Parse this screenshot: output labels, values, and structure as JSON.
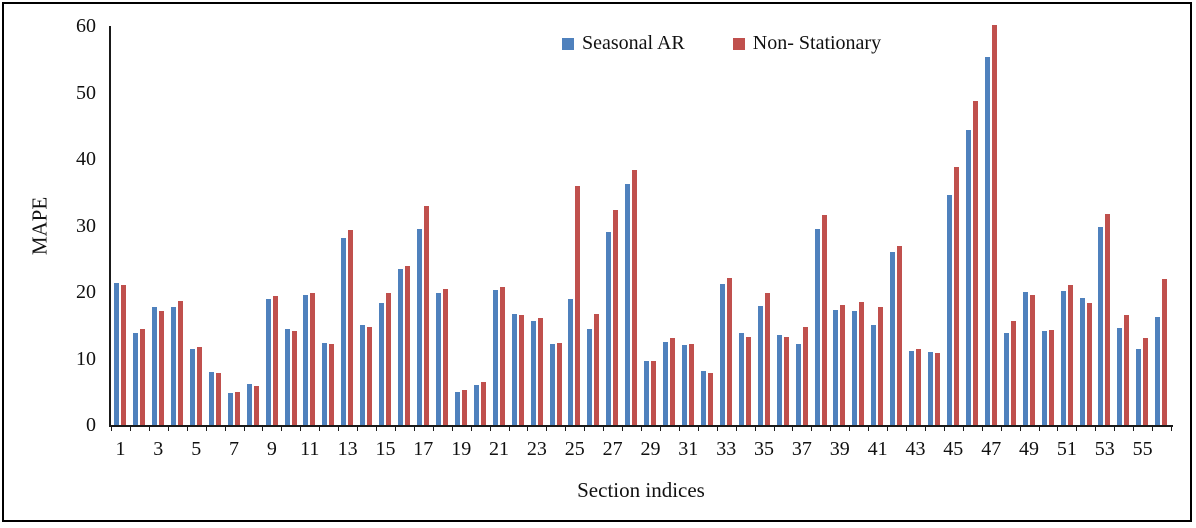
{
  "figure": {
    "ylabel": "MAPE",
    "xlabel": "Section indices"
  },
  "colors": {
    "seasonal_ar": "#4F81BD",
    "non_stationary": "#C0504D",
    "axis": "#1a1a1a"
  },
  "chart_data": {
    "type": "bar",
    "title": "",
    "xlabel": "Section indices",
    "ylabel": "MAPE",
    "ylim": [
      0,
      60
    ],
    "grid": false,
    "legend_position": "top-center",
    "y_ticks": [
      0,
      10,
      20,
      30,
      40,
      50,
      60
    ],
    "x_tick_labels": [
      "1",
      "3",
      "5",
      "7",
      "9",
      "11",
      "13",
      "15",
      "17",
      "19",
      "21",
      "23",
      "25",
      "27",
      "29",
      "31",
      "33",
      "35",
      "37",
      "39",
      "41",
      "43",
      "45",
      "47",
      "49",
      "51",
      "53",
      "55"
    ],
    "x_tick_step": 2,
    "categories": [
      1,
      2,
      3,
      4,
      5,
      6,
      7,
      8,
      9,
      10,
      11,
      12,
      13,
      14,
      15,
      16,
      17,
      18,
      19,
      20,
      21,
      22,
      23,
      24,
      25,
      26,
      27,
      28,
      29,
      30,
      31,
      32,
      33,
      34,
      35,
      36,
      37,
      38,
      39,
      40,
      41,
      42,
      43,
      44,
      45,
      46,
      47,
      48,
      49,
      50,
      51,
      52,
      53,
      54,
      55,
      56
    ],
    "series": [
      {
        "name": "Seasonal AR",
        "color": "#4F81BD",
        "values": [
          21.3,
          13.9,
          17.8,
          17.8,
          11.4,
          8.0,
          4.8,
          6.2,
          19.0,
          14.5,
          19.5,
          12.3,
          28.2,
          15.1,
          18.4,
          23.5,
          29.5,
          19.9,
          4.9,
          6.0,
          20.3,
          16.7,
          15.7,
          12.2,
          18.9,
          14.4,
          29.1,
          36.3,
          9.7,
          12.5,
          12.0,
          8.2,
          21.2,
          13.8,
          17.9,
          13.6,
          12.2,
          29.5,
          17.3,
          17.1,
          15.0,
          26.0,
          11.1,
          11.0,
          34.6,
          44.4,
          55.3,
          13.9,
          20.0,
          14.1,
          20.2,
          19.1,
          29.8,
          14.6,
          11.5,
          16.3
        ]
      },
      {
        "name": "Non- Stationary",
        "color": "#C0504D",
        "values": [
          21.0,
          14.4,
          17.1,
          18.6,
          11.7,
          7.9,
          4.9,
          5.9,
          19.4,
          14.2,
          19.8,
          12.2,
          29.3,
          14.8,
          19.9,
          23.9,
          33.0,
          20.4,
          5.2,
          6.4,
          20.7,
          16.6,
          16.1,
          12.4,
          35.9,
          16.7,
          32.4,
          38.3,
          9.6,
          13.1,
          12.2,
          7.8,
          22.1,
          13.2,
          19.8,
          13.3,
          14.8,
          31.6,
          18.0,
          18.5,
          17.7,
          26.9,
          11.5,
          10.9,
          38.8,
          48.8,
          60.1,
          15.7,
          19.6,
          14.3,
          21.1,
          18.3,
          31.7,
          16.5,
          13.1,
          22.0
        ]
      }
    ]
  }
}
